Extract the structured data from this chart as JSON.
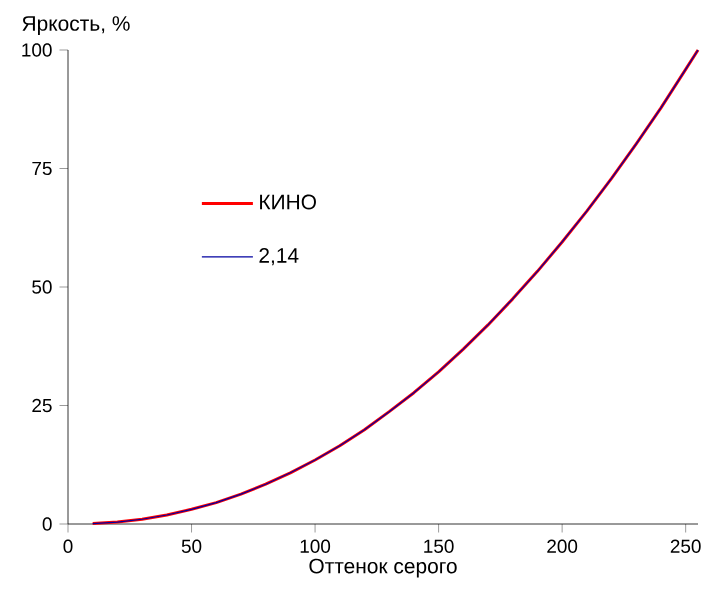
{
  "chart_data": {
    "type": "line",
    "xlabel": "Оттенок серого",
    "ylabel": "Яркость, %",
    "x": [
      10,
      20,
      30,
      40,
      50,
      60,
      70,
      80,
      90,
      100,
      110,
      120,
      130,
      140,
      150,
      160,
      170,
      180,
      190,
      200,
      210,
      220,
      230,
      240,
      250,
      255
    ],
    "series": [
      {
        "name": "КИНО",
        "color": "#ff0000",
        "values": [
          0.1,
          0.4,
          1.0,
          1.9,
          3.1,
          4.5,
          6.3,
          8.4,
          10.8,
          13.5,
          16.5,
          19.9,
          23.7,
          27.7,
          32.1,
          36.9,
          42.0,
          47.5,
          53.3,
          59.5,
          66.0,
          72.9,
          80.2,
          87.8,
          95.9,
          100
        ]
      },
      {
        "name": "2,14",
        "color": "#0000a0",
        "values": [
          0.1,
          0.4,
          1.0,
          1.9,
          3.1,
          4.5,
          6.3,
          8.4,
          10.8,
          13.5,
          16.5,
          19.9,
          23.7,
          27.7,
          32.1,
          36.9,
          42.0,
          47.5,
          53.3,
          59.5,
          66.0,
          72.9,
          80.2,
          87.8,
          95.9,
          100
        ]
      }
    ],
    "xlim": [
      0,
      255
    ],
    "ylim": [
      0,
      100
    ],
    "xticks": [
      0,
      50,
      100,
      150,
      200,
      250
    ],
    "yticks": [
      0,
      25,
      50,
      75,
      100
    ],
    "grid": false,
    "legend": "left",
    "marker": "none",
    "line_style": "solid"
  }
}
